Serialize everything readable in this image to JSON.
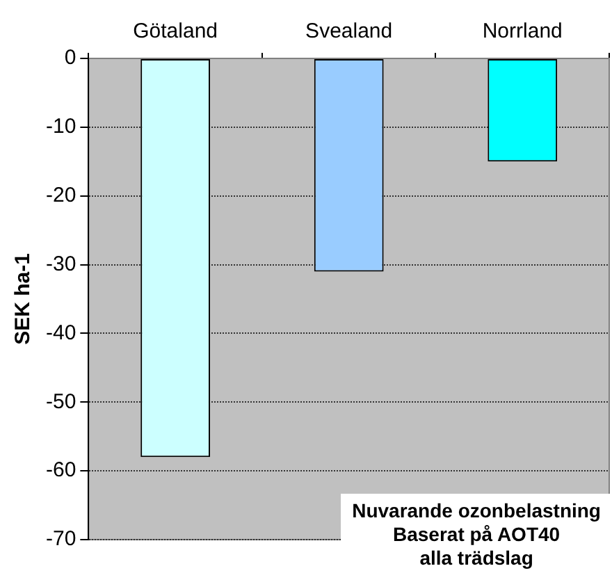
{
  "chart_data": {
    "type": "bar",
    "categories": [
      "Götaland",
      "Svealand",
      "Norrland"
    ],
    "values": [
      -58,
      -31,
      -15
    ],
    "colors": [
      "#ccffff",
      "#99ccff",
      "#00ffff"
    ],
    "ylabel": "SEK ha-1",
    "ylim": [
      -70,
      0
    ],
    "yticks": [
      0,
      -10,
      -20,
      -30,
      -40,
      -50,
      -60,
      -70
    ],
    "grid": "y",
    "legend": false,
    "annotations": [
      "Nuvarande ozonbelastning\nBaserat på AOT40\nalla trädslag"
    ]
  }
}
